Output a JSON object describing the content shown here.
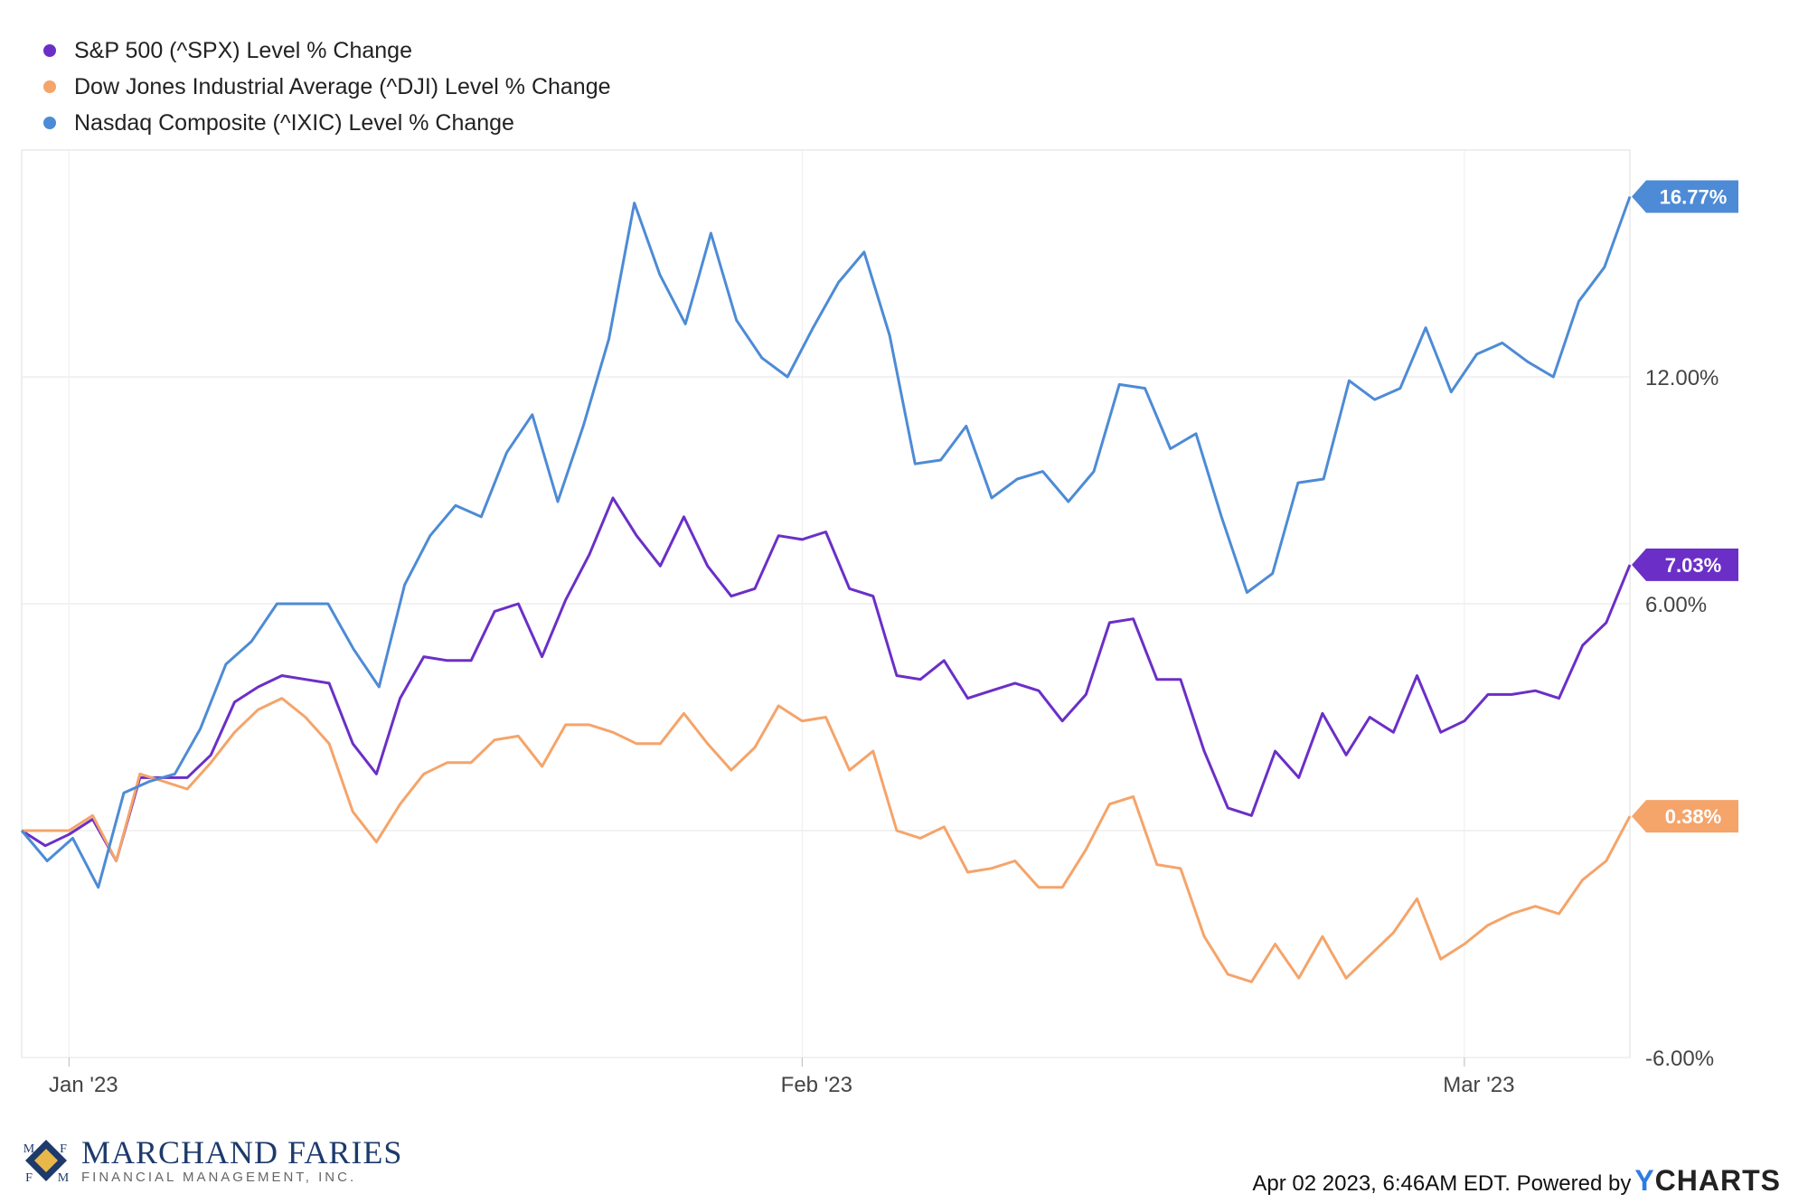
{
  "chart_data": {
    "type": "line",
    "title": "",
    "xlabel": "",
    "ylabel": "",
    "ylim": [
      -6,
      18
    ],
    "y_ticks": [
      "12.00%",
      "6.00%",
      "-6.00%"
    ],
    "y_tick_values": [
      12,
      6,
      -6
    ],
    "x_ticks": [
      "Jan '23",
      "Feb '23",
      "Mar '23"
    ],
    "x_tick_values": [
      2,
      33,
      61
    ],
    "grid": true,
    "legend_position": "top-left",
    "series": [
      {
        "name": "S&P 500 (^SPX) Level % Change",
        "color": "#6b2fc7",
        "end_label": "7.03%",
        "values": [
          0,
          -0.4,
          -0.1,
          0.3,
          -0.8,
          1.4,
          1.4,
          1.4,
          2.0,
          3.4,
          3.8,
          4.1,
          4.0,
          3.9,
          2.3,
          1.5,
          3.5,
          4.6,
          4.5,
          4.5,
          5.8,
          6.0,
          4.6,
          6.1,
          7.3,
          8.8,
          7.8,
          7.0,
          8.3,
          7.0,
          6.2,
          6.4,
          7.8,
          7.7,
          7.9,
          6.4,
          6.2,
          4.1,
          4.0,
          4.5,
          3.5,
          3.7,
          3.9,
          3.7,
          2.9,
          3.6,
          5.5,
          5.6,
          4.0,
          4.0,
          2.1,
          0.6,
          0.4,
          2.1,
          1.4,
          3.1,
          2.0,
          3.0,
          2.6,
          4.1,
          2.6,
          2.9,
          3.6,
          3.6,
          3.7,
          3.5,
          4.9,
          5.5,
          7.03
        ]
      },
      {
        "name": "Dow Jones Industrial Average (^DJI) Level % Change",
        "color": "#f5a46a",
        "end_label": "0.38%",
        "values": [
          0,
          0,
          0,
          0.4,
          -0.8,
          1.5,
          1.3,
          1.1,
          1.8,
          2.6,
          3.2,
          3.5,
          3.0,
          2.3,
          0.5,
          -0.3,
          0.7,
          1.5,
          1.8,
          1.8,
          2.4,
          2.5,
          1.7,
          2.8,
          2.8,
          2.6,
          2.3,
          2.3,
          3.1,
          2.3,
          1.6,
          2.2,
          3.3,
          2.9,
          3.0,
          1.6,
          2.1,
          0,
          -0.2,
          0.1,
          -1.1,
          -1.0,
          -0.8,
          -1.5,
          -1.5,
          -0.5,
          0.7,
          0.9,
          -0.9,
          -1.0,
          -2.8,
          -3.8,
          -4.0,
          -3.0,
          -3.9,
          -2.8,
          -3.9,
          -3.3,
          -2.7,
          -1.8,
          -3.4,
          -3.0,
          -2.5,
          -2.2,
          -2.0,
          -2.2,
          -1.3,
          -0.8,
          0.38
        ]
      },
      {
        "name": "Nasdaq Composite (^IXIC) Level % Change",
        "color": "#4d8bd6",
        "end_label": "16.77%",
        "values": [
          0,
          -0.8,
          -0.2,
          -1.5,
          1.0,
          1.3,
          1.5,
          2.7,
          4.4,
          5.0,
          6.0,
          6.0,
          6.0,
          4.8,
          3.8,
          6.5,
          7.8,
          8.6,
          8.3,
          10.0,
          11.0,
          8.7,
          10.7,
          13.0,
          16.6,
          14.7,
          13.4,
          15.8,
          13.5,
          12.5,
          12.0,
          13.3,
          14.5,
          15.3,
          13.1,
          9.7,
          9.8,
          10.7,
          8.8,
          9.3,
          9.5,
          8.7,
          9.5,
          11.8,
          11.7,
          10.1,
          10.5,
          8.3,
          6.3,
          6.8,
          9.2,
          9.3,
          11.9,
          11.4,
          11.7,
          13.3,
          11.6,
          12.6,
          12.9,
          12.4,
          12.0,
          14.0,
          14.9,
          16.77
        ]
      }
    ]
  },
  "footer": {
    "timestamp": "Apr 02 2023, 6:46AM EDT.",
    "powered_by": "Powered by",
    "brand_y": "Y",
    "brand_rest": "CHARTS"
  },
  "logo": {
    "name": "MARCHAND FARIES",
    "subtitle": "FINANCIAL MANAGEMENT, INC.",
    "mark_letters": [
      "M",
      "F",
      "F",
      "M"
    ]
  }
}
